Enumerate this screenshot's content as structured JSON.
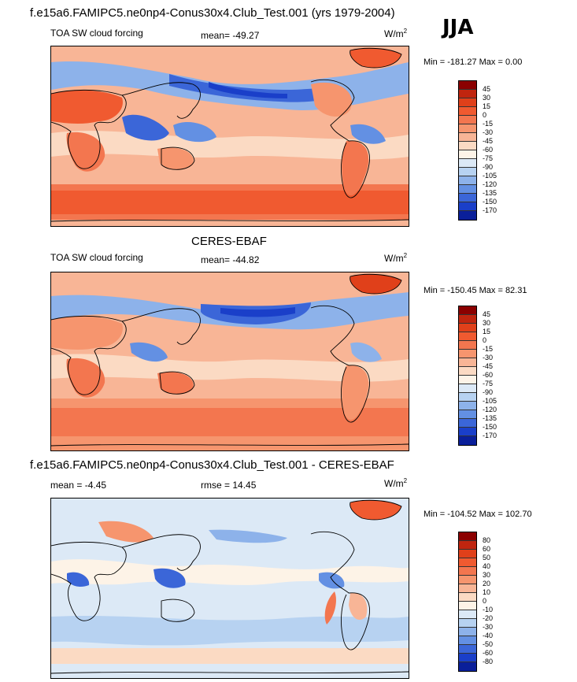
{
  "header": {
    "title": "f.e15a6.FAMIPC5.ne0np4-Conus30x4.Club_Test.001 (yrs 1979-2004)",
    "season": "JJA"
  },
  "panels": [
    {
      "id": "model",
      "heading": "",
      "variable": "TOA SW cloud forcing",
      "mean_label": "mean= -49.27",
      "units_label": "W/m",
      "units_exp": "2",
      "minmax_label": "Min = -181.27 Max =   0.00",
      "colorbar": {
        "labels": [
          "45",
          "30",
          "15",
          "0",
          "-15",
          "-30",
          "-45",
          "-60",
          "-75",
          "-90",
          "-105",
          "-120",
          "-135",
          "-150",
          "-170"
        ],
        "colors": [
          "#8b0000",
          "#c0250f",
          "#e0401a",
          "#f05a30",
          "#f3764f",
          "#f6956e",
          "#f8b596",
          "#fbdac3",
          "#fdf3e7",
          "#dce9f6",
          "#b7d2f1",
          "#8db2ea",
          "#6390e3",
          "#3b66d8",
          "#1a3fc9",
          "#0a1f9a"
        ]
      }
    },
    {
      "id": "obs",
      "heading": "CERES-EBAF",
      "variable": "TOA SW cloud forcing",
      "mean_label": "mean= -44.82",
      "units_label": "W/m",
      "units_exp": "2",
      "minmax_label": "Min = -150.45 Max =  82.31",
      "colorbar": {
        "labels": [
          "45",
          "30",
          "15",
          "0",
          "-15",
          "-30",
          "-45",
          "-60",
          "-75",
          "-90",
          "-105",
          "-120",
          "-135",
          "-150",
          "-170"
        ],
        "colors": [
          "#8b0000",
          "#c0250f",
          "#e0401a",
          "#f05a30",
          "#f3764f",
          "#f6956e",
          "#f8b596",
          "#fbdac3",
          "#fdf3e7",
          "#dce9f6",
          "#b7d2f1",
          "#8db2ea",
          "#6390e3",
          "#3b66d8",
          "#1a3fc9",
          "#0a1f9a"
        ]
      }
    },
    {
      "id": "diff",
      "heading": "f.e15a6.FAMIPC5.ne0np4-Conus30x4.Club_Test.001 - CERES-EBAF",
      "variable": "mean =  -4.45",
      "mean_label": "rmse =  14.45",
      "units_label": "W/m",
      "units_exp": "2",
      "minmax_label": "Min = -104.52 Max = 102.70",
      "colorbar": {
        "labels": [
          "80",
          "60",
          "50",
          "40",
          "30",
          "20",
          "10",
          "0",
          "-10",
          "-20",
          "-30",
          "-40",
          "-50",
          "-60",
          "-80"
        ],
        "colors": [
          "#8b0000",
          "#c0250f",
          "#e0401a",
          "#f05a30",
          "#f3764f",
          "#f6956e",
          "#f8b596",
          "#fbdac3",
          "#fdf3e7",
          "#dce9f6",
          "#b7d2f1",
          "#8db2ea",
          "#6390e3",
          "#3b66d8",
          "#1a3fc9",
          "#0a1f9a"
        ]
      }
    }
  ]
}
